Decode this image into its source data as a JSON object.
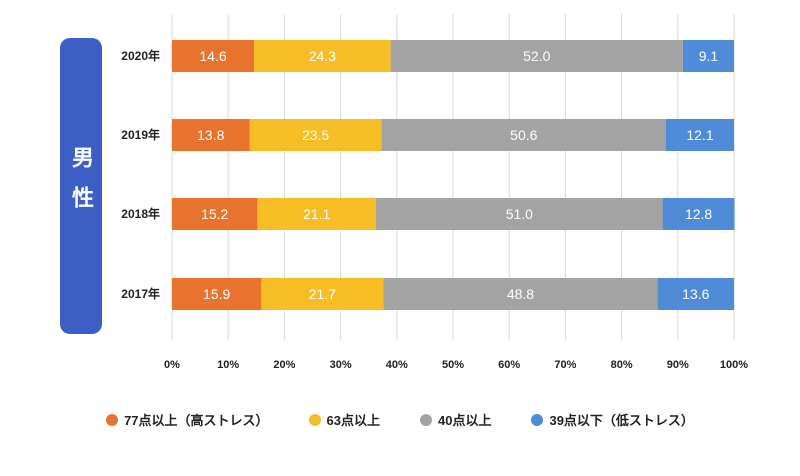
{
  "panel_label": "男性",
  "chart_data": {
    "type": "bar",
    "orientation": "horizontal",
    "stacked": "percent",
    "categories": [
      "2020年",
      "2019年",
      "2018年",
      "2017年"
    ],
    "series": [
      {
        "name": "77点以上（高ストレス）",
        "color": "#e8732d",
        "values": [
          14.6,
          13.8,
          15.2,
          15.9
        ]
      },
      {
        "name": "63点以上",
        "color": "#f7bd24",
        "values": [
          24.3,
          23.5,
          21.1,
          21.7
        ]
      },
      {
        "name": "40点以上",
        "color": "#a3a3a3",
        "values": [
          52.0,
          50.6,
          51.0,
          48.8
        ]
      },
      {
        "name": "39点以下（低ストレス）",
        "color": "#4f8bd6",
        "values": [
          9.1,
          12.1,
          12.8,
          13.6
        ]
      }
    ],
    "value_labels": [
      [
        "14.6",
        "24.3",
        "52.0",
        "9.1"
      ],
      [
        "13.8",
        "23.5",
        "50.6",
        "12.1"
      ],
      [
        "15.2",
        "21.1",
        "51.0",
        "12.8"
      ],
      [
        "15.9",
        "21.7",
        "48.8",
        "13.6"
      ]
    ],
    "xlim": [
      0,
      100
    ],
    "xticks": [
      "0%",
      "10%",
      "20%",
      "30%",
      "40%",
      "50%",
      "60%",
      "70%",
      "80%",
      "90%",
      "100%"
    ],
    "grid": "vertical",
    "legend": "bottom"
  }
}
